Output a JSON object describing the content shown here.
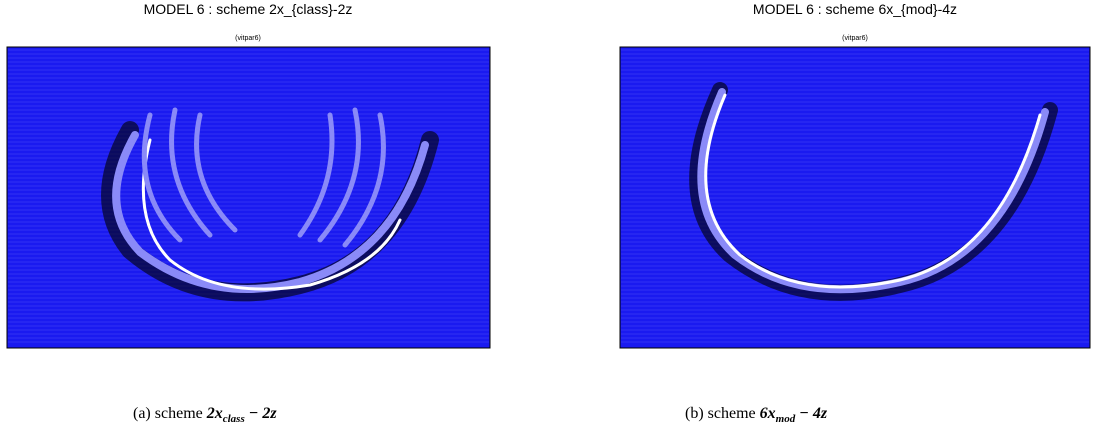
{
  "panels": [
    {
      "title": "MODEL 6 : scheme 2x_{class}-2z",
      "subtitle": "(vitpar6)",
      "caption": {
        "label": "(a) scheme",
        "base": "2x",
        "sub": "class",
        "rest": "− 2z"
      }
    },
    {
      "title": "MODEL 6 : scheme 6x_{mod}-4z",
      "subtitle": "(vitpar6)",
      "caption": {
        "label": "(b) scheme",
        "base": "6x",
        "sub": "mod",
        "rest": "− 4z"
      }
    }
  ]
}
